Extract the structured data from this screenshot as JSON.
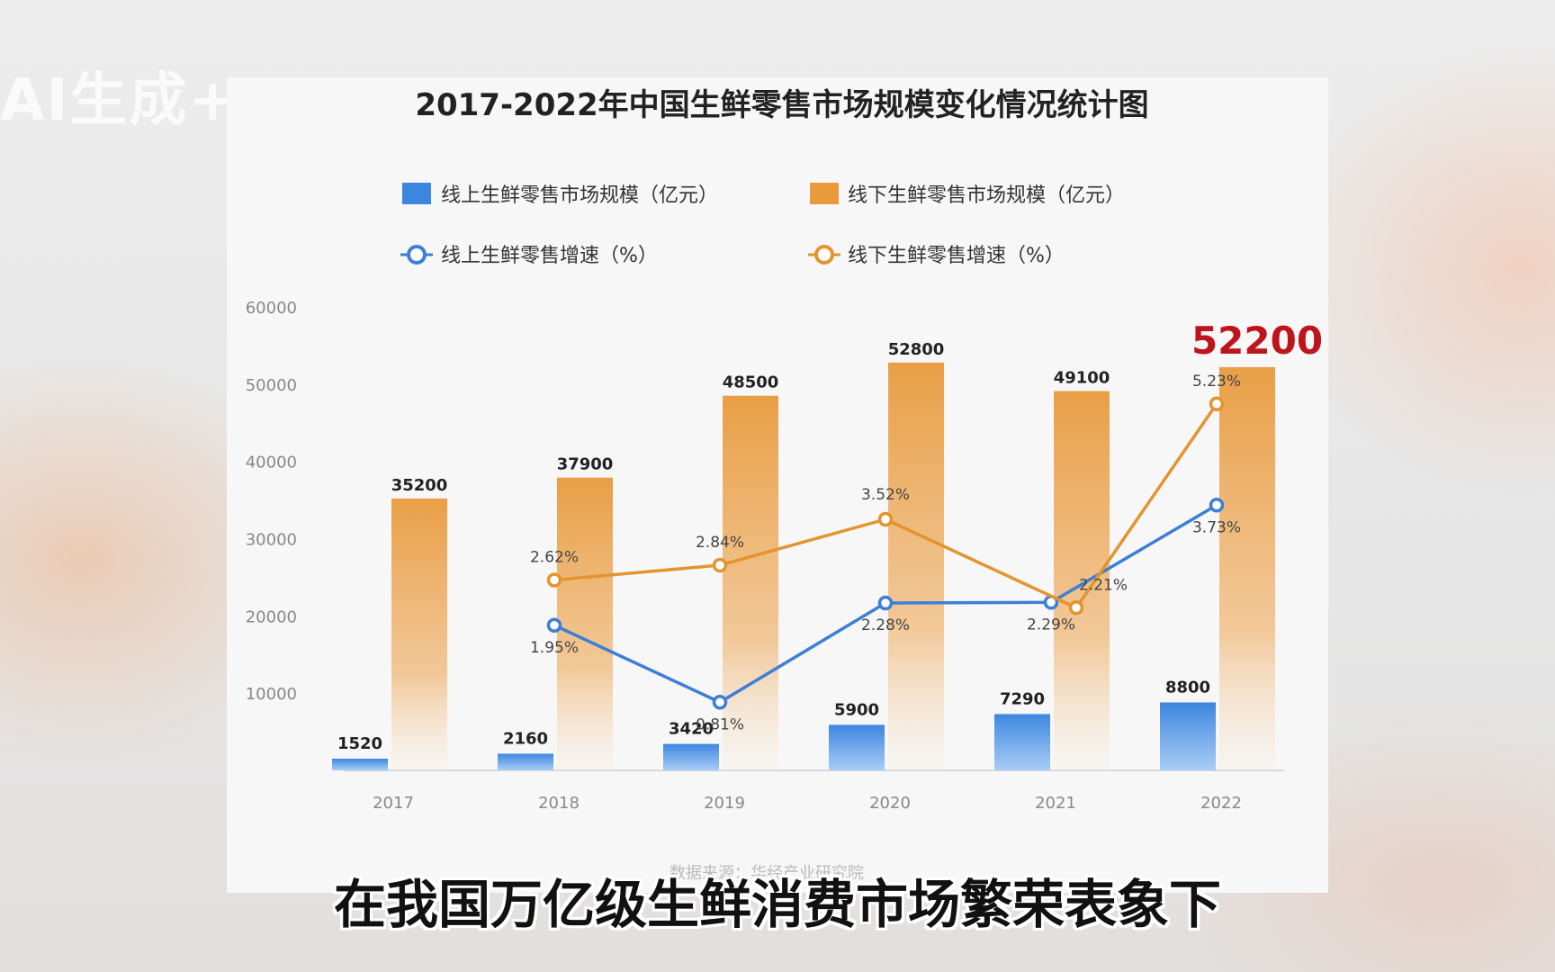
{
  "watermark": "AI生成+",
  "subtitle": "在我国万亿级生鲜消费市场繁荣表象下",
  "source_note": "数据来源：华经产业研究院",
  "colors": {
    "online": "#3d7fd6",
    "offline": "#e3942f",
    "highlight": "#c0141c",
    "axis_text": "#888888",
    "title": "#222222"
  },
  "chart_data": {
    "type": "bar",
    "title": "2017-2022年中国生鲜零售市场规模变化情况统计图",
    "categories": [
      "2017",
      "2018",
      "2019",
      "2020",
      "2021",
      "2022"
    ],
    "yticks": [
      "60000",
      "50000",
      "40000",
      "30000",
      "20000",
      "10000"
    ],
    "ylim": [
      0,
      60000
    ],
    "highlight_value": "52200",
    "legend": [
      {
        "label": "线上生鲜零售市场规模（亿元）",
        "kind": "bar",
        "series": "online"
      },
      {
        "label": "线下生鲜零售市场规模（亿元）",
        "kind": "bar",
        "series": "offline"
      },
      {
        "label": "线上生鲜零售增速（%）",
        "kind": "line",
        "series": "online"
      },
      {
        "label": "线下生鲜零售增速（%）",
        "kind": "line",
        "series": "offline"
      }
    ],
    "bars": [
      {
        "name": "线上生鲜零售市场规模（亿元）",
        "values": [
          1520,
          2160,
          3420,
          5900,
          7290,
          8800
        ],
        "labels": [
          "1520",
          "2160",
          "3420",
          "5900",
          "7290",
          "8800"
        ]
      },
      {
        "name": "线下生鲜零售市场规模（亿元）",
        "values": [
          35200,
          37900,
          48500,
          52800,
          49100,
          52200
        ],
        "labels": [
          "35200",
          "37900",
          "48500",
          "52800",
          "49100",
          ""
        ]
      }
    ],
    "lines": [
      {
        "name": "线上生鲜零售增速（%）",
        "x": [
          "2018",
          "2019",
          "2020",
          "2021",
          "2022"
        ],
        "values": [
          1.95,
          0.81,
          2.28,
          2.29,
          3.73
        ],
        "labels": [
          "1.95%",
          "0.81%",
          "2.28%",
          "2.29%",
          "3.73%"
        ]
      },
      {
        "name": "线下生鲜零售增速（%）",
        "x": [
          "2018",
          "2019",
          "2020",
          "2021",
          "2022"
        ],
        "values": [
          2.62,
          2.84,
          3.52,
          2.21,
          5.23
        ],
        "labels": [
          "2.62%",
          "2.84%",
          "3.52%",
          "2.21%",
          "5.23%"
        ]
      }
    ]
  }
}
